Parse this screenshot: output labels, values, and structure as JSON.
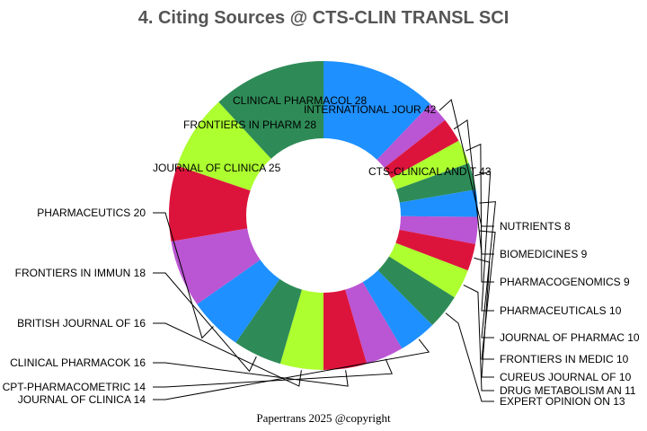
{
  "chart_data": {
    "type": "pie",
    "subtype": "donut",
    "title": "4. Citing Sources @ CTS-CLIN TRANSL SCI",
    "footer": "Papertrans 2025 @copyright",
    "slices": [
      {
        "name": "CTS-CLINICAL AND T",
        "value": 43,
        "label": "CTS-CLINICAL AND T 43",
        "color": "#1e90ff"
      },
      {
        "name": "NUTRIENTS",
        "value": 8,
        "label": "NUTRIENTS 8",
        "color": "#ba55d3"
      },
      {
        "name": "BIOMEDICINES",
        "value": 9,
        "label": "BIOMEDICINES 9",
        "color": "#dc143c"
      },
      {
        "name": "PHARMACOGENOMICS",
        "value": 9,
        "label": "PHARMACOGENOMICS 9",
        "color": "#adff2f"
      },
      {
        "name": "PHARMACEUTICALS",
        "value": 10,
        "label": "PHARMACEUTICALS 10",
        "color": "#2e8b57"
      },
      {
        "name": "JOURNAL OF PHARMAC",
        "value": 10,
        "label": "JOURNAL OF PHARMAC 10",
        "color": "#1e90ff"
      },
      {
        "name": "FRONTIERS IN MEDIC",
        "value": 10,
        "label": "FRONTIERS IN MEDIC 10",
        "color": "#ba55d3"
      },
      {
        "name": "CUREUS JOURNAL OF",
        "value": 10,
        "label": "CUREUS JOURNAL OF  10",
        "color": "#dc143c"
      },
      {
        "name": "DRUG METABOLISM AN",
        "value": 11,
        "label": "DRUG METABOLISM AN 11",
        "color": "#adff2f"
      },
      {
        "name": "EXPERT OPINION ON",
        "value": 13,
        "label": "EXPERT OPINION ON  13",
        "color": "#2e8b57"
      },
      {
        "name": "JOURNAL OF CLINICA",
        "value": 14,
        "label": "JOURNAL OF CLINICA 14",
        "color": "#1e90ff"
      },
      {
        "name": "CPT-PHARMACOMETRIC",
        "value": 14,
        "label": "CPT-PHARMACOMETRIC 14",
        "color": "#ba55d3"
      },
      {
        "name": "CLINICAL PHARMACOK",
        "value": 16,
        "label": "CLINICAL PHARMACOK 16",
        "color": "#dc143c"
      },
      {
        "name": "BRITISH JOURNAL OF",
        "value": 16,
        "label": "BRITISH JOURNAL OF 16",
        "color": "#adff2f"
      },
      {
        "name": "FRONTIERS IN IMMUN",
        "value": 18,
        "label": "FRONTIERS IN IMMUN 18",
        "color": "#2e8b57"
      },
      {
        "name": "PHARMACEUTICS",
        "value": 20,
        "label": "PHARMACEUTICS 20",
        "color": "#1e90ff"
      },
      {
        "name": "JOURNAL OF CLINICA",
        "value": 25,
        "label": "JOURNAL OF CLINICA 25",
        "color": "#ba55d3"
      },
      {
        "name": "FRONTIERS IN PHARM",
        "value": 28,
        "label": "FRONTIERS IN PHARM 28",
        "color": "#dc143c"
      },
      {
        "name": "CLINICAL PHARMACOL",
        "value": 28,
        "label": "CLINICAL PHARMACOL 28",
        "color": "#adff2f"
      },
      {
        "name": "INTERNATIONAL JOUR",
        "value": 42,
        "label": "INTERNATIONAL JOUR 42",
        "color": "#2e8b57"
      }
    ]
  }
}
